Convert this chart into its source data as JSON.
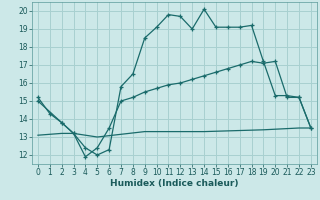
{
  "xlabel": "Humidex (Indice chaleur)",
  "background_color": "#cce8e8",
  "grid_color": "#a8d0d0",
  "line_color": "#1a6b6b",
  "xlim": [
    -0.5,
    23.5
  ],
  "ylim": [
    11.5,
    20.5
  ],
  "xticks": [
    0,
    1,
    2,
    3,
    4,
    5,
    6,
    7,
    8,
    9,
    10,
    11,
    12,
    13,
    14,
    15,
    16,
    17,
    18,
    19,
    20,
    21,
    22,
    23
  ],
  "yticks": [
    12,
    13,
    14,
    15,
    16,
    17,
    18,
    19,
    20
  ],
  "line1_x": [
    0,
    1,
    2,
    3,
    4,
    5,
    6,
    7,
    8,
    9,
    10,
    11,
    12,
    13,
    14,
    15,
    16,
    17,
    18,
    19,
    20,
    21,
    22,
    23
  ],
  "line1_y": [
    15.2,
    14.3,
    13.8,
    13.2,
    12.4,
    12.0,
    12.3,
    15.8,
    16.5,
    18.5,
    19.1,
    19.8,
    19.7,
    19.0,
    20.1,
    19.1,
    19.1,
    19.1,
    19.2,
    17.2,
    15.3,
    15.3,
    15.2,
    13.5
  ],
  "line2_x": [
    0,
    2,
    3,
    4,
    5,
    6,
    7,
    8,
    9,
    10,
    11,
    12,
    13,
    14,
    15,
    16,
    17,
    18,
    19,
    20,
    21,
    22,
    23
  ],
  "line2_y": [
    15.0,
    13.8,
    13.2,
    11.9,
    12.4,
    13.5,
    15.0,
    15.2,
    15.5,
    15.7,
    15.9,
    16.0,
    16.2,
    16.4,
    16.6,
    16.8,
    17.0,
    17.2,
    17.1,
    17.2,
    15.2,
    15.2,
    13.5
  ],
  "line3_x": [
    0,
    2,
    3,
    5,
    9,
    14,
    19,
    22,
    23
  ],
  "line3_y": [
    13.1,
    13.2,
    13.2,
    13.0,
    13.3,
    13.3,
    13.4,
    13.5,
    13.5
  ],
  "figsize": [
    3.2,
    2.0
  ],
  "dpi": 100
}
